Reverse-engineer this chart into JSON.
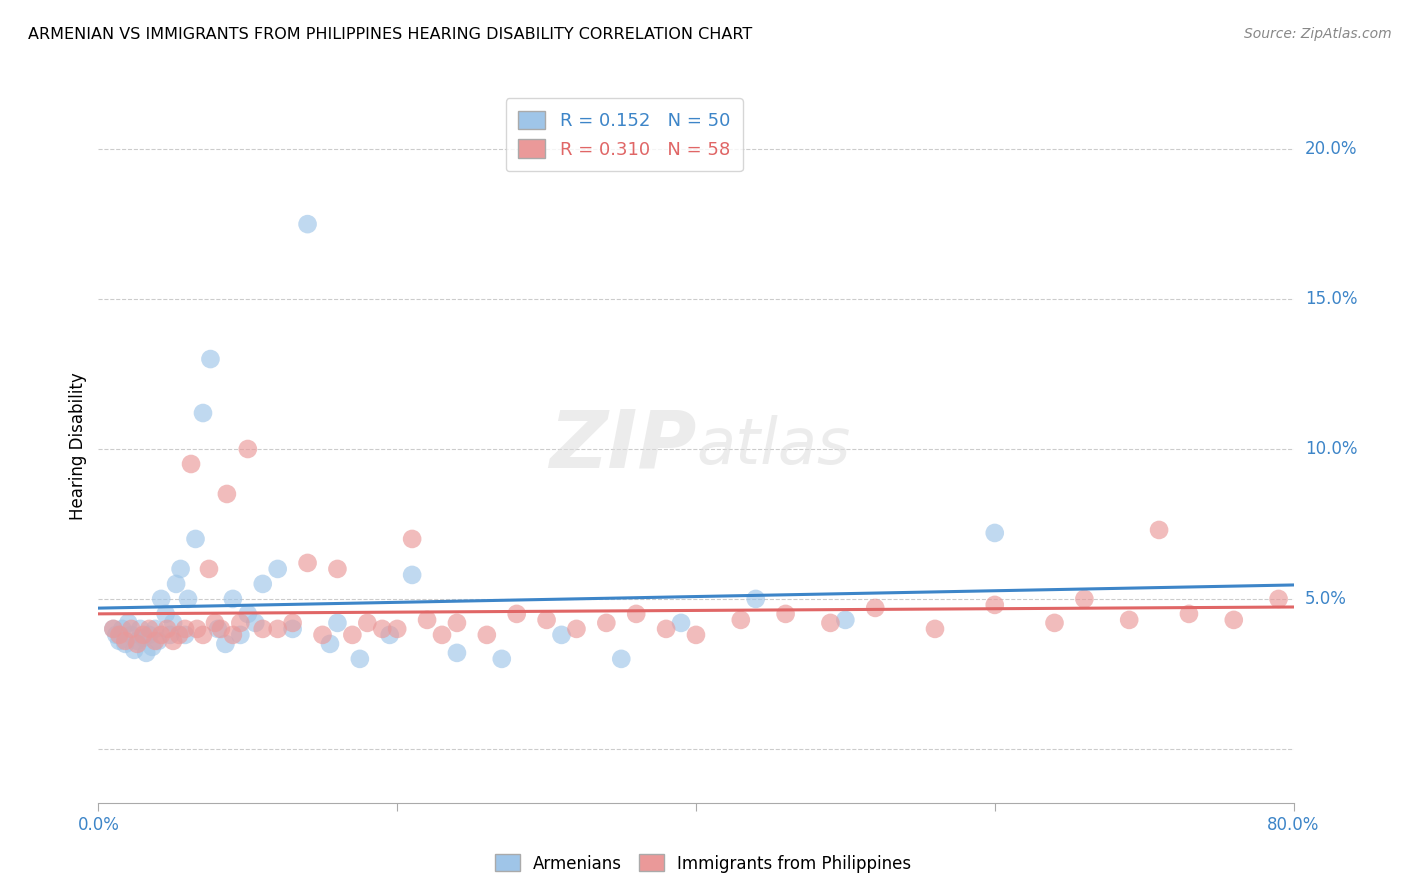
{
  "title": "ARMENIAN VS IMMIGRANTS FROM PHILIPPINES HEARING DISABILITY CORRELATION CHART",
  "source": "Source: ZipAtlas.com",
  "ylabel": "Hearing Disability",
  "xlim": [
    0.0,
    0.8
  ],
  "ylim": [
    -0.018,
    0.22
  ],
  "xticks": [
    0.0,
    0.2,
    0.4,
    0.6,
    0.8
  ],
  "xtick_labels": [
    "0.0%",
    "",
    "",
    "",
    "80.0%"
  ],
  "yticks": [
    0.0,
    0.05,
    0.1,
    0.15,
    0.2
  ],
  "ytick_labels": [
    "",
    "5.0%",
    "10.0%",
    "15.0%",
    "20.0%"
  ],
  "blue_R": 0.152,
  "blue_N": 50,
  "pink_R": 0.31,
  "pink_N": 58,
  "legend_label_blue": "Armenians",
  "legend_label_pink": "Immigrants from Philippines",
  "blue_color": "#9fc5e8",
  "pink_color": "#ea9999",
  "blue_line_color": "#3d85c8",
  "pink_line_color": "#e06666",
  "watermark_zip": "ZIP",
  "watermark_atlas": "atlas",
  "blue_x": [
    0.01,
    0.012,
    0.014,
    0.016,
    0.018,
    0.02,
    0.022,
    0.024,
    0.026,
    0.028,
    0.03,
    0.032,
    0.034,
    0.036,
    0.038,
    0.04,
    0.042,
    0.045,
    0.048,
    0.05,
    0.052,
    0.055,
    0.058,
    0.06,
    0.065,
    0.07,
    0.075,
    0.08,
    0.085,
    0.09,
    0.095,
    0.1,
    0.105,
    0.11,
    0.12,
    0.13,
    0.14,
    0.155,
    0.16,
    0.175,
    0.195,
    0.21,
    0.24,
    0.27,
    0.31,
    0.35,
    0.39,
    0.44,
    0.5,
    0.6
  ],
  "blue_y": [
    0.04,
    0.038,
    0.036,
    0.04,
    0.035,
    0.042,
    0.038,
    0.033,
    0.036,
    0.04,
    0.037,
    0.032,
    0.038,
    0.034,
    0.04,
    0.036,
    0.05,
    0.045,
    0.038,
    0.042,
    0.055,
    0.06,
    0.038,
    0.05,
    0.07,
    0.112,
    0.13,
    0.04,
    0.035,
    0.05,
    0.038,
    0.045,
    0.042,
    0.055,
    0.06,
    0.04,
    0.175,
    0.035,
    0.042,
    0.03,
    0.038,
    0.058,
    0.032,
    0.03,
    0.038,
    0.03,
    0.042,
    0.05,
    0.043,
    0.072
  ],
  "pink_x": [
    0.01,
    0.014,
    0.018,
    0.022,
    0.026,
    0.03,
    0.034,
    0.038,
    0.042,
    0.046,
    0.05,
    0.054,
    0.058,
    0.062,
    0.066,
    0.07,
    0.074,
    0.078,
    0.082,
    0.086,
    0.09,
    0.095,
    0.1,
    0.11,
    0.12,
    0.13,
    0.14,
    0.15,
    0.16,
    0.17,
    0.18,
    0.19,
    0.2,
    0.21,
    0.22,
    0.23,
    0.24,
    0.26,
    0.28,
    0.3,
    0.32,
    0.34,
    0.36,
    0.38,
    0.4,
    0.43,
    0.46,
    0.49,
    0.52,
    0.56,
    0.6,
    0.64,
    0.66,
    0.69,
    0.71,
    0.73,
    0.76,
    0.79
  ],
  "pink_y": [
    0.04,
    0.038,
    0.036,
    0.04,
    0.035,
    0.038,
    0.04,
    0.036,
    0.038,
    0.04,
    0.036,
    0.038,
    0.04,
    0.095,
    0.04,
    0.038,
    0.06,
    0.042,
    0.04,
    0.085,
    0.038,
    0.042,
    0.1,
    0.04,
    0.04,
    0.042,
    0.062,
    0.038,
    0.06,
    0.038,
    0.042,
    0.04,
    0.04,
    0.07,
    0.043,
    0.038,
    0.042,
    0.038,
    0.045,
    0.043,
    0.04,
    0.042,
    0.045,
    0.04,
    0.038,
    0.043,
    0.045,
    0.042,
    0.047,
    0.04,
    0.048,
    0.042,
    0.05,
    0.043,
    0.073,
    0.045,
    0.043,
    0.05
  ]
}
